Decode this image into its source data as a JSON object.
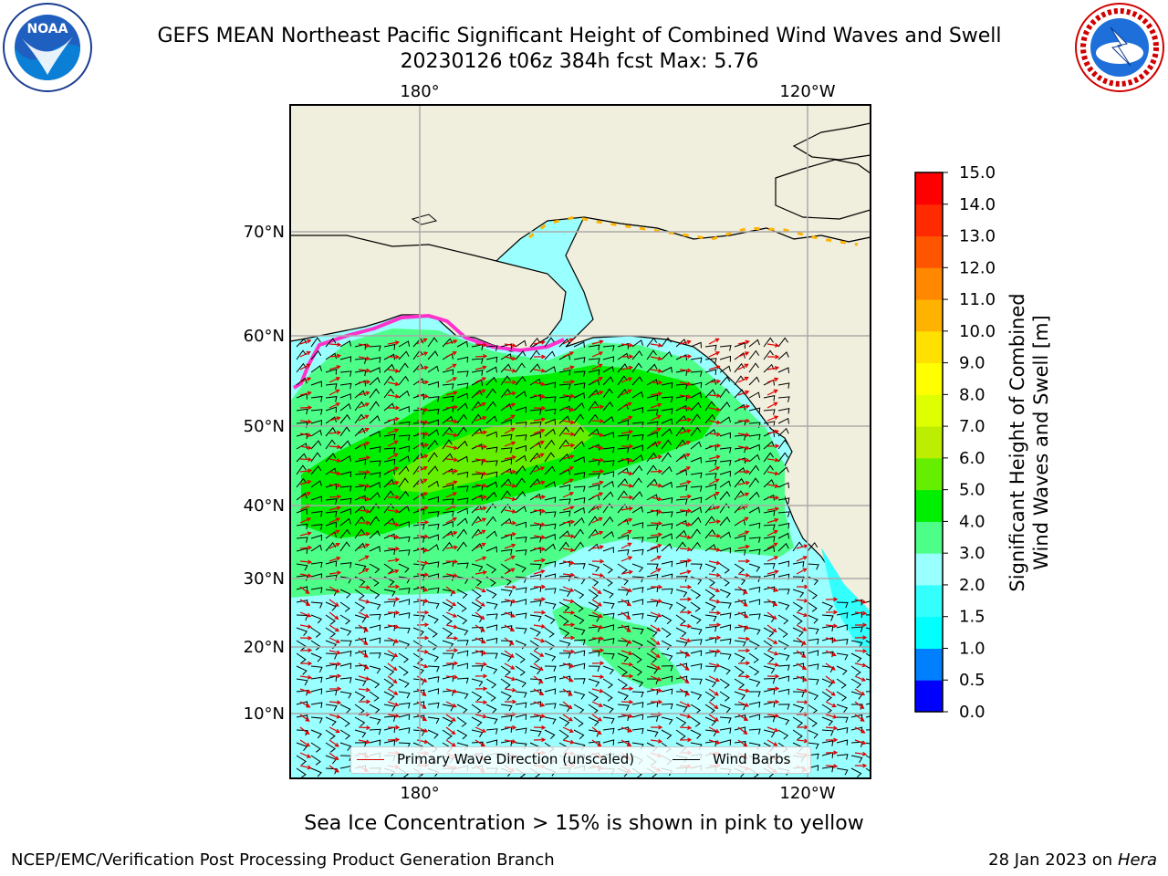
{
  "title": {
    "line1": "GEFS MEAN Northeast Pacific Significant Height of Combined Wind Waves and Swell",
    "line2": "20230126 t06z 384h fcst   Max: 5.76"
  },
  "logos": {
    "left": {
      "name": "NOAA",
      "icon": "noaa-logo-icon",
      "lettering": "NATIONAL OCEANIC AND ATMOSPHERIC ADMINISTRATION U.S. DEPARTMENT OF COMMERCE"
    },
    "right": {
      "name": "NATIONAL WEATHER SERVICE",
      "icon": "nws-logo-icon"
    }
  },
  "map": {
    "lon_labels_top": [
      "180°",
      "120°W"
    ],
    "lon_labels_bottom": [
      "180°",
      "120°W"
    ],
    "lat_labels": [
      "70°N",
      "60°N",
      "50°N",
      "40°N",
      "30°N",
      "20°N",
      "10°N"
    ],
    "colors": {
      "land": "#f0eedc",
      "ocean_low": "#99ffff",
      "wave_arrow": "#e00000",
      "wind_barb": "#000000",
      "ice": "#ff33cc"
    }
  },
  "legend": {
    "wave": "Primary Wave Direction (unscaled)",
    "wind": "Wind Barbs"
  },
  "colorbar": {
    "title_line1": "Significant Height of Combined",
    "title_line2": "Wind Waves and Swell [m]",
    "ticks": [
      "15.0",
      "14.0",
      "13.0",
      "12.0",
      "11.0",
      "10.0",
      "9.0",
      "8.0",
      "7.0",
      "6.0",
      "5.0",
      "4.0",
      "3.0",
      "2.0",
      "1.5",
      "1.0",
      "0.5",
      "0.0"
    ],
    "colors": [
      "#0000ff",
      "#0080ff",
      "#00ffff",
      "#33ffff",
      "#99ffff",
      "#4dff88",
      "#00ee00",
      "#66ee00",
      "#bbee00",
      "#ddff00",
      "#ffff00",
      "#ffe000",
      "#ffb300",
      "#ff8800",
      "#ff5500",
      "#ff2a00",
      "#ff0000"
    ]
  },
  "footer": {
    "ice_note": "Sea Ice Concentration > 15% is shown in pink to yellow",
    "branch": "NCEP/EMC/Verification Post Processing Product Generation Branch",
    "date_prefix": "28 Jan 2023 on",
    "date_host": "Hera"
  }
}
